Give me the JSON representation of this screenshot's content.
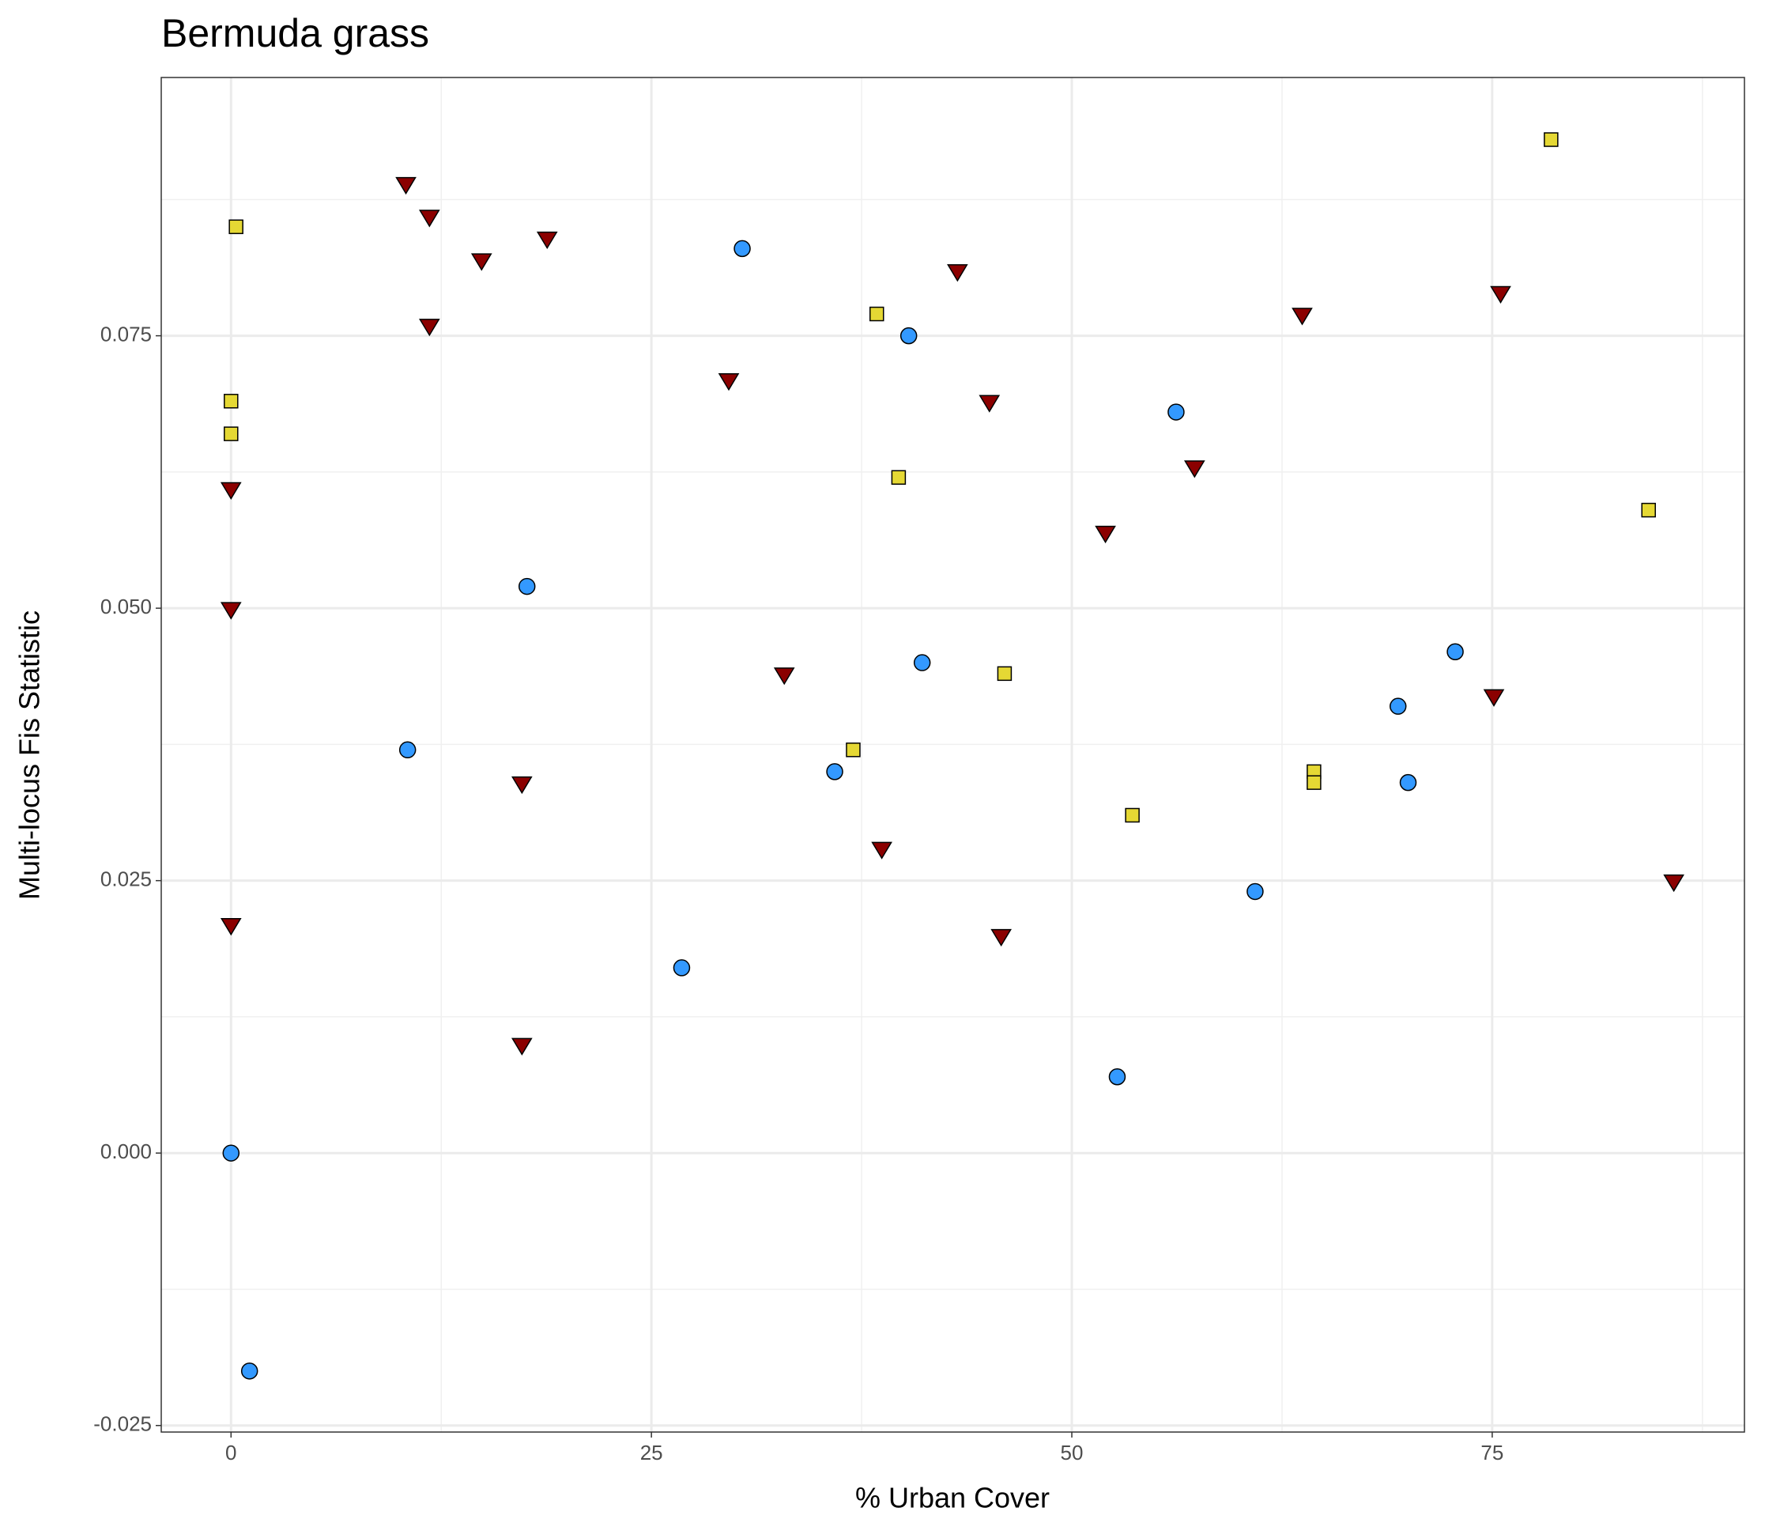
{
  "chart_data": {
    "type": "scatter",
    "title": "Bermuda grass",
    "x_label": "% Urban Cover",
    "y_label": "Multi-locus Fis Statistic",
    "xlim": [
      -4.15,
      90
    ],
    "ylim": [
      -0.0256,
      0.0987
    ],
    "xticks": [
      0,
      25,
      50,
      75
    ],
    "yticks": [
      {
        "value": -0.025,
        "label": "-0.025"
      },
      {
        "value": 0,
        "label": "0.000"
      },
      {
        "value": 0.025,
        "label": "0.025"
      },
      {
        "value": 0.05,
        "label": "0.050"
      },
      {
        "value": 0.075,
        "label": "0.075"
      }
    ],
    "grid": true,
    "series": [
      {
        "color": "#3399ff",
        "shape": "circle",
        "x": [
          30.4,
          40.3,
          56.2,
          17.6,
          41.1,
          72.8,
          69.4,
          10.5,
          35.9,
          70.0,
          60.9,
          26.8,
          52.7,
          0,
          1.1
        ],
        "values": [
          0.083,
          0.075,
          0.068,
          0.052,
          0.045,
          0.046,
          0.041,
          0.037,
          0.035,
          0.034,
          0.024,
          0.017,
          0.007,
          0,
          -0.02
        ]
      },
      {
        "color": "#e5d834",
        "shape": "square",
        "x": [
          78.5,
          0.3,
          38.4,
          0,
          0,
          39.7,
          84.3,
          46.0,
          37.0,
          64.4,
          64.4,
          53.6
        ],
        "values": [
          0.093,
          0.085,
          0.077,
          0.069,
          0.066,
          0.062,
          0.059,
          0.044,
          0.037,
          0.035,
          0.034,
          0.031
        ]
      },
      {
        "color": "#8b0000",
        "shape": "triangle-down",
        "x": [
          10.4,
          11.8,
          18.8,
          14.9,
          43.2,
          11.8,
          75.5,
          63.7,
          29.6,
          45.1,
          0,
          57.3,
          52.0,
          0,
          32.9,
          75.1,
          17.3,
          38.7,
          85.8,
          0,
          45.8,
          17.3
        ],
        "values": [
          0.089,
          0.086,
          0.084,
          0.082,
          0.081,
          0.076,
          0.079,
          0.077,
          0.071,
          0.069,
          0.061,
          0.063,
          0.057,
          0.05,
          0.044,
          0.042,
          0.034,
          0.028,
          0.025,
          0.021,
          0.02,
          0.01
        ]
      }
    ]
  }
}
